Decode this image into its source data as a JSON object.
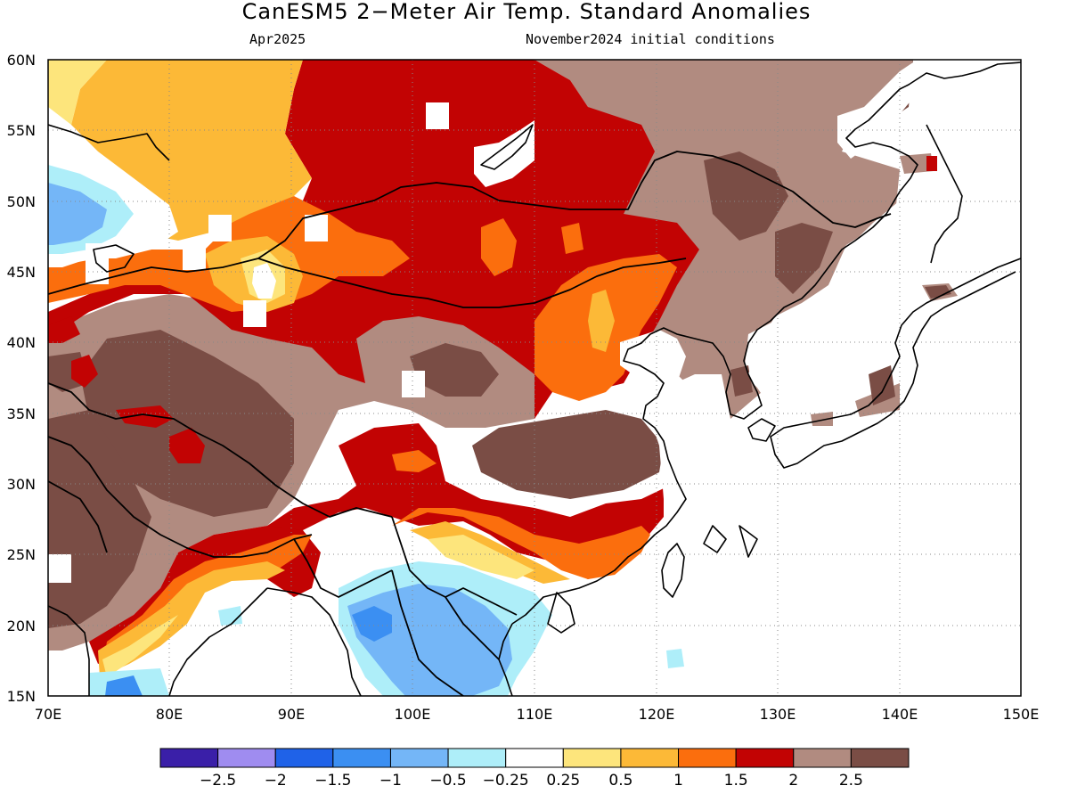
{
  "title": "CanESM5 2−Meter Air Temp. Standard Anomalies",
  "subtitle_left": "Apr2025",
  "subtitle_right": "November2024 initial conditions",
  "map": {
    "lon_range": [
      70,
      150
    ],
    "lat_range": [
      15,
      60
    ],
    "lon_ticks": [
      "70E",
      "80E",
      "90E",
      "100E",
      "110E",
      "120E",
      "130E",
      "140E",
      "150E"
    ],
    "lat_ticks": [
      "60N",
      "55N",
      "50N",
      "45N",
      "40N",
      "35N",
      "30N",
      "25N",
      "20N",
      "15N"
    ]
  },
  "colorbar": {
    "colors": [
      "#3a1fa8",
      "#9f8cf0",
      "#1f62e8",
      "#3b8ff2",
      "#74b6f7",
      "#aeeef9",
      "#ffffff",
      "#fde57c",
      "#fcb937",
      "#fb6e0d",
      "#c20303",
      "#b18b80",
      "#7a4d45"
    ],
    "labels": [
      "−2.5",
      "−2",
      "−1.5",
      "−1",
      "−0.5",
      "−0.25",
      "0.25",
      "0.5",
      "1",
      "1.5",
      "2",
      "2.5"
    ]
  }
}
